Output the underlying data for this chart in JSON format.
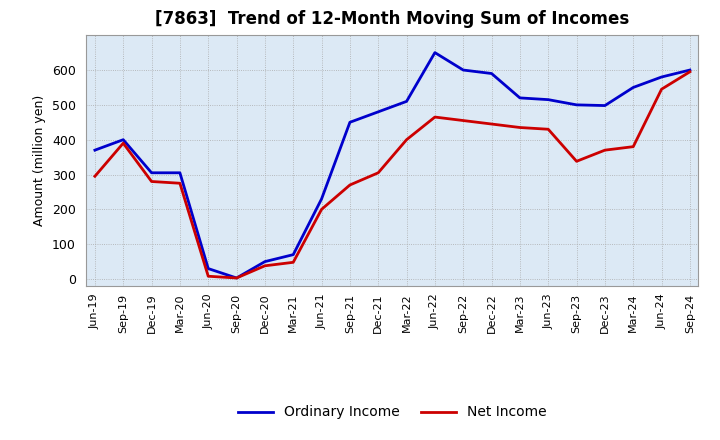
{
  "title": "[7863]  Trend of 12-Month Moving Sum of Incomes",
  "ylabel": "Amount (million yen)",
  "ylim": [
    -20,
    700
  ],
  "yticks": [
    0,
    100,
    200,
    300,
    400,
    500,
    600
  ],
  "background_color": "#ffffff",
  "plot_bg_color": "#dce9f5",
  "grid_color": "#aaaaaa",
  "ordinary_income_color": "#0000cc",
  "net_income_color": "#cc0000",
  "line_width": 2.0,
  "labels": [
    "Jun-19",
    "Sep-19",
    "Dec-19",
    "Mar-20",
    "Jun-20",
    "Sep-20",
    "Dec-20",
    "Mar-21",
    "Jun-21",
    "Sep-21",
    "Dec-21",
    "Mar-22",
    "Jun-22",
    "Sep-22",
    "Dec-22",
    "Mar-23",
    "Jun-23",
    "Sep-23",
    "Dec-23",
    "Mar-24",
    "Jun-24",
    "Sep-24"
  ],
  "ordinary_income": [
    370,
    400,
    305,
    305,
    30,
    3,
    50,
    70,
    230,
    450,
    480,
    510,
    650,
    600,
    590,
    520,
    515,
    500,
    498,
    550,
    580,
    600
  ],
  "net_income": [
    295,
    390,
    280,
    275,
    8,
    3,
    38,
    48,
    200,
    270,
    305,
    400,
    465,
    455,
    445,
    435,
    430,
    338,
    370,
    380,
    545,
    595
  ]
}
